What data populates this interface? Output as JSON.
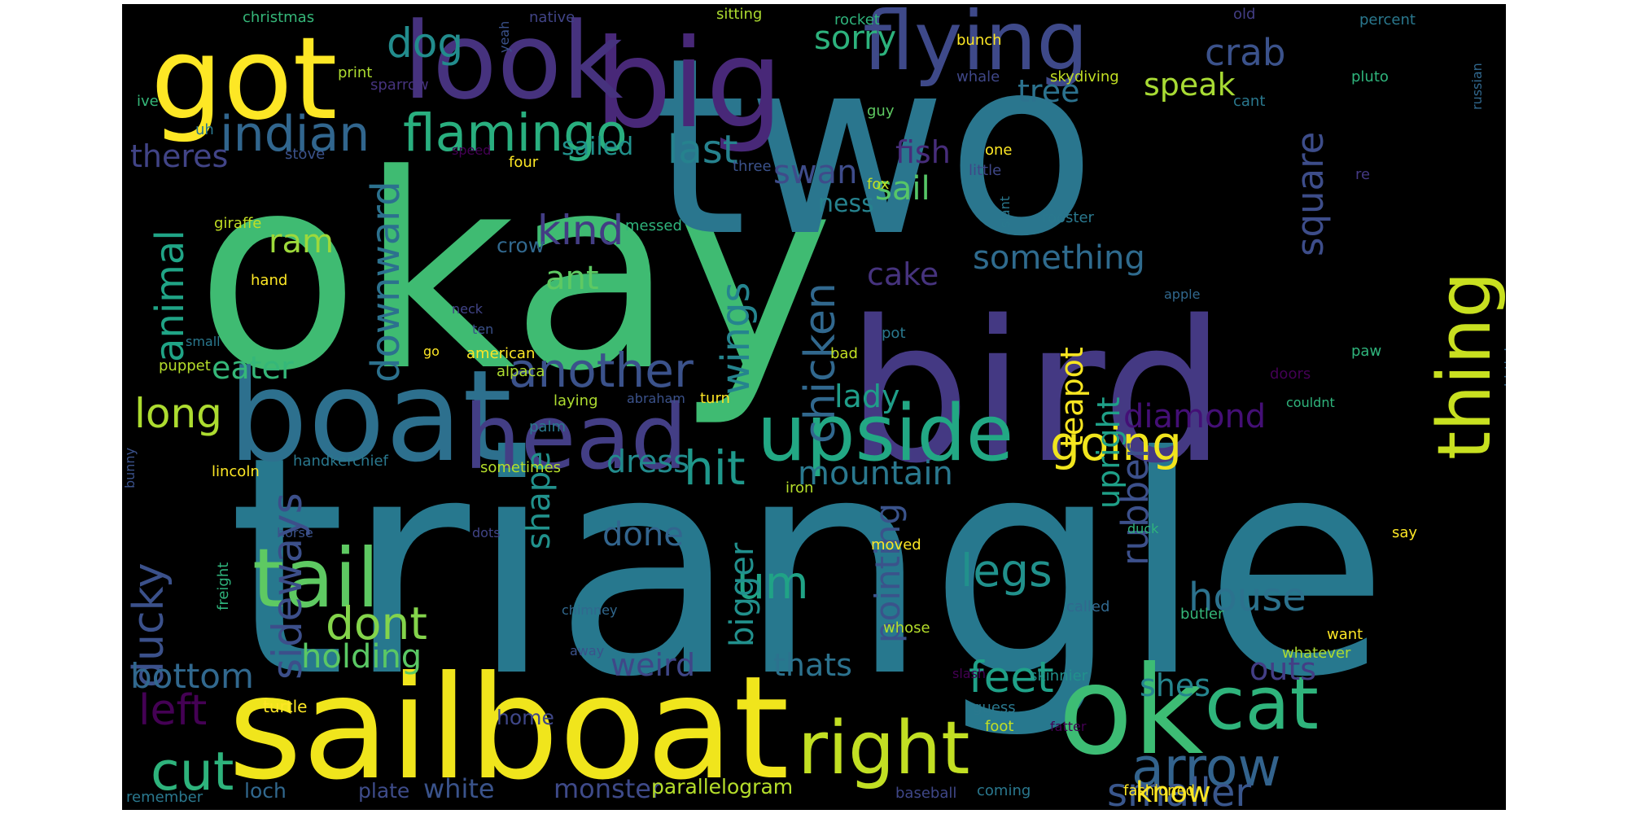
{
  "wordcloud": {
    "background": "#000000",
    "words": [
      {
        "text": "triangle",
        "color": "#27788e"
      },
      {
        "text": "okay",
        "color": "#3fbb72"
      },
      {
        "text": "two",
        "color": "#2a768e"
      },
      {
        "text": "bird",
        "color": "#443983"
      },
      {
        "text": "sailboat",
        "color": "#f0e51c"
      },
      {
        "text": "boat",
        "color": "#2d708e"
      },
      {
        "text": "ok",
        "color": "#3dbc74"
      },
      {
        "text": "big",
        "color": "#482878"
      },
      {
        "text": "look",
        "color": "#46327e"
      },
      {
        "text": "got",
        "color": "#fde725"
      },
      {
        "text": "flying",
        "color": "#3e4989"
      },
      {
        "text": "head",
        "color": "#433e85"
      },
      {
        "text": "upside",
        "color": "#22a884"
      },
      {
        "text": "tail",
        "color": "#5ec962"
      },
      {
        "text": "right",
        "color": "#c2df23"
      },
      {
        "text": "cat",
        "color": "#2fb47c"
      },
      {
        "text": "thing",
        "color": "#c8e020"
      },
      {
        "text": "arrow",
        "color": "#33638d"
      },
      {
        "text": "cut",
        "color": "#2eb37c"
      },
      {
        "text": "flamingo",
        "color": "#29af7f"
      },
      {
        "text": "indian",
        "color": "#31668e"
      },
      {
        "text": "another",
        "color": "#3b528b"
      },
      {
        "text": "going",
        "color": "#f1e51d"
      },
      {
        "text": "hit",
        "color": "#1f988b"
      },
      {
        "text": "um",
        "color": "#20a386"
      },
      {
        "text": "legs",
        "color": "#21918c"
      },
      {
        "text": "house",
        "color": "#2c728e"
      },
      {
        "text": "feet",
        "color": "#1fa188"
      },
      {
        "text": "smaller",
        "color": "#39568c"
      },
      {
        "text": "dont",
        "color": "#84d44b"
      },
      {
        "text": "ducky",
        "color": "#3b518b"
      },
      {
        "text": "left",
        "color": "#440154"
      },
      {
        "text": "bottom",
        "color": "#31688e"
      },
      {
        "text": "long",
        "color": "#addc30"
      },
      {
        "text": "animal",
        "color": "#20a486"
      },
      {
        "text": "chicken",
        "color": "#31688e"
      },
      {
        "text": "wings",
        "color": "#25848e"
      },
      {
        "text": "downward",
        "color": "#2c718e"
      },
      {
        "text": "sideways",
        "color": "#3c4f8a"
      },
      {
        "text": "kind",
        "color": "#433d84"
      },
      {
        "text": "last",
        "color": "#26828e"
      },
      {
        "text": "dog",
        "color": "#228c8d"
      },
      {
        "text": "crab",
        "color": "#3b528b"
      },
      {
        "text": "sorry",
        "color": "#2db27d"
      },
      {
        "text": "speak",
        "color": "#a8db34"
      },
      {
        "text": "tree",
        "color": "#2c728e"
      },
      {
        "text": "swan",
        "color": "#3e4c8a"
      },
      {
        "text": "square",
        "color": "#3d4d8a"
      },
      {
        "text": "something",
        "color": "#2f6b8e"
      },
      {
        "text": "cake",
        "color": "#46337e"
      },
      {
        "text": "fish",
        "color": "#472d7b"
      },
      {
        "text": "sail",
        "color": "#56c667"
      },
      {
        "text": "ness",
        "color": "#26828e"
      },
      {
        "text": "ram",
        "color": "#9dd93b"
      },
      {
        "text": "ant",
        "color": "#5ec962"
      },
      {
        "text": "eater",
        "color": "#35b779"
      },
      {
        "text": "theres",
        "color": "#414487"
      },
      {
        "text": "rubber",
        "color": "#3c508b"
      },
      {
        "text": "upright",
        "color": "#1fa088"
      },
      {
        "text": "teapot",
        "color": "#f8e621"
      },
      {
        "text": "diamond",
        "color": "#440f76"
      },
      {
        "text": "lady",
        "color": "#1f9e89"
      },
      {
        "text": "mountain",
        "color": "#2a788e"
      },
      {
        "text": "pointing",
        "color": "#3a538b"
      },
      {
        "text": "shape",
        "color": "#21918c"
      },
      {
        "text": "dress",
        "color": "#228b8d"
      },
      {
        "text": "done",
        "color": "#32658e"
      },
      {
        "text": "bigger",
        "color": "#21908d"
      },
      {
        "text": "weird",
        "color": "#3f4788"
      },
      {
        "text": "thats",
        "color": "#2c728e"
      },
      {
        "text": "holding",
        "color": "#5ac864"
      },
      {
        "text": "outs",
        "color": "#433e85"
      },
      {
        "text": "shes",
        "color": "#25858e"
      },
      {
        "text": "know",
        "color": "#fde725"
      },
      {
        "text": "white",
        "color": "#3a538b"
      },
      {
        "text": "monster",
        "color": "#3e4a89"
      },
      {
        "text": "parallelogram",
        "color": "#b5de2b"
      },
      {
        "text": "loch",
        "color": "#31688e"
      },
      {
        "text": "plate",
        "color": "#3e4c8a"
      },
      {
        "text": "home",
        "color": "#3f4788"
      },
      {
        "text": "turtle",
        "color": "#fde725"
      },
      {
        "text": "christmas",
        "color": "#35b779"
      },
      {
        "text": "native",
        "color": "#414487"
      },
      {
        "text": "sitting",
        "color": "#addc30"
      },
      {
        "text": "rocket",
        "color": "#2fb47c"
      },
      {
        "text": "old",
        "color": "#433e85"
      },
      {
        "text": "percent",
        "color": "#2a788e"
      },
      {
        "text": "yeah",
        "color": "#3b528b"
      },
      {
        "text": "bunch",
        "color": "#fde725"
      },
      {
        "text": "print",
        "color": "#addc30"
      },
      {
        "text": "sparrow",
        "color": "#46337e"
      },
      {
        "text": "ive",
        "color": "#35b779"
      },
      {
        "text": "whale",
        "color": "#3f4788"
      },
      {
        "text": "skydiving",
        "color": "#c2df23"
      },
      {
        "text": "pluto",
        "color": "#2fb47c"
      },
      {
        "text": "russian",
        "color": "#31688e"
      },
      {
        "text": "cant",
        "color": "#2a788e"
      },
      {
        "text": "guy",
        "color": "#5ec962"
      },
      {
        "text": "uh",
        "color": "#2a788e"
      },
      {
        "text": "stove",
        "color": "#3b528b"
      },
      {
        "text": "speed",
        "color": "#440154"
      },
      {
        "text": "four",
        "color": "#fde725"
      },
      {
        "text": "sailed",
        "color": "#21918c"
      },
      {
        "text": "three",
        "color": "#3b528b"
      },
      {
        "text": "one",
        "color": "#fde725"
      },
      {
        "text": "little",
        "color": "#3f4788"
      },
      {
        "text": "re",
        "color": "#443983"
      },
      {
        "text": "fox",
        "color": "#c2df23"
      },
      {
        "text": "slant",
        "color": "#2a788e"
      },
      {
        "text": "rooster",
        "color": "#2a788e"
      },
      {
        "text": "giraffe",
        "color": "#c2df23"
      },
      {
        "text": "messed",
        "color": "#2fb47c"
      },
      {
        "text": "crow",
        "color": "#31688e"
      },
      {
        "text": "hand",
        "color": "#fde725"
      },
      {
        "text": "apple",
        "color": "#31688e"
      },
      {
        "text": "neck",
        "color": "#414487"
      },
      {
        "text": "ten",
        "color": "#3b528b"
      },
      {
        "text": "pot",
        "color": "#2a788e"
      },
      {
        "text": "small",
        "color": "#2a788e"
      },
      {
        "text": "puppet",
        "color": "#b5de2b"
      },
      {
        "text": "go",
        "color": "#fde725"
      },
      {
        "text": "american",
        "color": "#fde725"
      },
      {
        "text": "alpaca",
        "color": "#addc30"
      },
      {
        "text": "bad",
        "color": "#c2df23"
      },
      {
        "text": "paw",
        "color": "#2fb47c"
      },
      {
        "text": "birthday",
        "color": "#31688e"
      },
      {
        "text": "doors",
        "color": "#440154"
      },
      {
        "text": "laying",
        "color": "#addc30"
      },
      {
        "text": "abraham",
        "color": "#3b528b"
      },
      {
        "text": "turn",
        "color": "#fde725"
      },
      {
        "text": "couldnt",
        "color": "#2fb47c"
      },
      {
        "text": "palm",
        "color": "#2a788e"
      },
      {
        "text": "handkerchief",
        "color": "#2a788e"
      },
      {
        "text": "sometimes",
        "color": "#b5de2b"
      },
      {
        "text": "lincoln",
        "color": "#fde725"
      },
      {
        "text": "iron",
        "color": "#b5de2b"
      },
      {
        "text": "bunny",
        "color": "#3b528b"
      },
      {
        "text": "horse",
        "color": "#3b528b"
      },
      {
        "text": "dots",
        "color": "#414487"
      },
      {
        "text": "duck",
        "color": "#2fb47c"
      },
      {
        "text": "say",
        "color": "#fde725"
      },
      {
        "text": "freight",
        "color": "#2fb47c"
      },
      {
        "text": "moved",
        "color": "#fde725"
      },
      {
        "text": "chimney",
        "color": "#31688e"
      },
      {
        "text": "called",
        "color": "#31688e"
      },
      {
        "text": "butler",
        "color": "#35b779"
      },
      {
        "text": "whose",
        "color": "#b5de2b"
      },
      {
        "text": "want",
        "color": "#fde725"
      },
      {
        "text": "away",
        "color": "#3b528b"
      },
      {
        "text": "slash",
        "color": "#440154"
      },
      {
        "text": "skinnier",
        "color": "#21918c"
      },
      {
        "text": "whatever",
        "color": "#addc30"
      },
      {
        "text": "guess",
        "color": "#2a788e"
      },
      {
        "text": "foot",
        "color": "#c2df23"
      },
      {
        "text": "fatter",
        "color": "#440154"
      },
      {
        "text": "remember",
        "color": "#2a788e"
      },
      {
        "text": "baseball",
        "color": "#3f4788"
      },
      {
        "text": "coming",
        "color": "#2a788e"
      },
      {
        "text": "fashioned",
        "color": "#fde725"
      }
    ]
  }
}
